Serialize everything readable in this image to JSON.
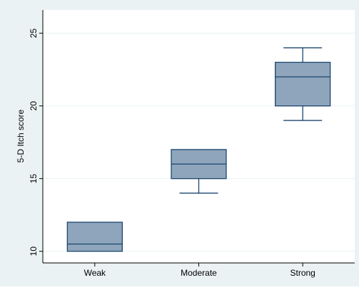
{
  "chart_data": {
    "type": "box",
    "title": "",
    "xlabel": "",
    "ylabel": "5-D Itch score",
    "categories": [
      "Weak",
      "Moderate",
      "Strong"
    ],
    "ylim": [
      9.2,
      26.6
    ],
    "yticks": [
      10,
      15,
      20,
      25
    ],
    "grid": true,
    "legend": "none",
    "boxes": [
      {
        "category": "Weak",
        "min": 10,
        "q1": 10,
        "median": 10.5,
        "q3": 12,
        "max": 12
      },
      {
        "category": "Moderate",
        "min": 14,
        "q1": 15,
        "median": 16,
        "q3": 17,
        "max": 17
      },
      {
        "category": "Strong",
        "min": 19,
        "q1": 20,
        "median": 22,
        "q3": 23,
        "max": 24
      }
    ],
    "colors": {
      "outer_background": "#eaf2f3",
      "plot_background": "#ffffff",
      "box_fill": "#8fa5bc",
      "box_stroke": "#1a476f",
      "grid": "#eaf2f3",
      "axis": "#000000",
      "text": "#000000"
    }
  }
}
